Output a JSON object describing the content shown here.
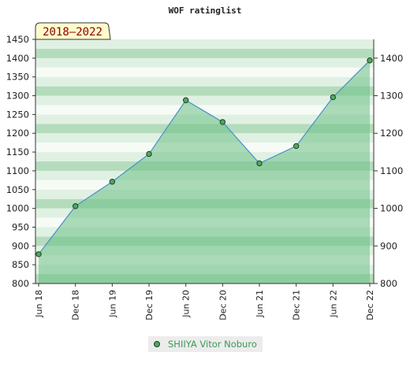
{
  "chart_data": {
    "type": "area",
    "title": "WOF ratinglist",
    "badge": "2018–2022",
    "categories": [
      "Jun 18",
      "Dec 18",
      "Jun 19",
      "Dec 19",
      "Jun 20",
      "Dec 20",
      "Jun 21",
      "Dec 21",
      "Jun 22",
      "Dec 22"
    ],
    "series": [
      {
        "name": "SHIIYA Vitor Noburo",
        "values": [
          878,
          1006,
          1071,
          1145,
          1288,
          1230,
          1120,
          1166,
          1296,
          1394
        ]
      }
    ],
    "ylim": [
      800,
      1450
    ],
    "yticks_left": [
      800,
      850,
      900,
      950,
      1000,
      1050,
      1100,
      1150,
      1200,
      1250,
      1300,
      1350,
      1400,
      1450
    ],
    "yticks_right": [
      800,
      900,
      1000,
      1100,
      1200,
      1300,
      1400
    ],
    "legend_position": "bottom-center",
    "colors": {
      "line": "#4a90c8",
      "area": "#6cbf85",
      "marker_fill": "#4fa862",
      "badge_bg": "#fffccc",
      "band_dark": "#b4dcbc",
      "band_light": "#e0f1e3",
      "band_white": "#f6fbf6"
    }
  }
}
